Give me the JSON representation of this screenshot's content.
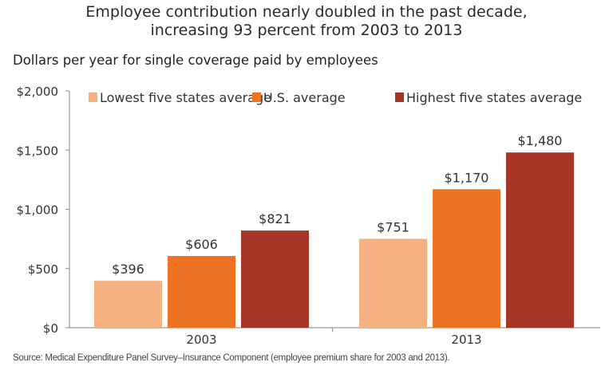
{
  "chart_data": {
    "type": "bar",
    "title": "Employee contribution nearly doubled in the past decade,",
    "title_line2": "increasing 93 percent from 2003 to 2013",
    "subtitle": "Dollars per year for single coverage paid by employees",
    "xlabel": "",
    "ylabel": "",
    "categories": [
      "2003",
      "2013"
    ],
    "ylim": [
      0,
      2000
    ],
    "yticks": [
      0,
      500,
      1000,
      1500,
      2000
    ],
    "ytick_labels": [
      "$0",
      "$500",
      "$1,000",
      "$1,500",
      "$2,000"
    ],
    "grid": false,
    "legend_position": "top",
    "series": [
      {
        "name": "Lowest five states average",
        "color": "#F6B183",
        "values": [
          396,
          751
        ],
        "labels": [
          "$396",
          "$751"
        ]
      },
      {
        "name": "U.S. average",
        "color": "#EE7424",
        "values": [
          606,
          1170
        ],
        "labels": [
          "$606",
          "$1,170"
        ]
      },
      {
        "name": "Highest five states average",
        "color": "#A63626",
        "values": [
          821,
          1480
        ],
        "labels": [
          "$821",
          "$1,480"
        ]
      }
    ],
    "source": "Source: Medical Expenditure Panel Survey–Insurance Component (employee premium share for 2003 and 2013)."
  }
}
